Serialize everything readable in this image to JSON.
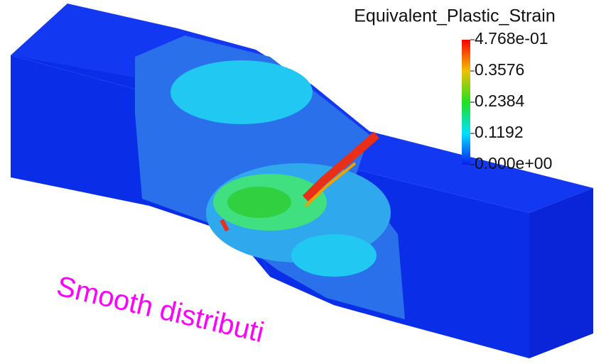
{
  "colorbar": {
    "title": "Equivalent_Plastic_Strain",
    "range": [
      0,
      0.4768
    ],
    "ticks": [
      {
        "value": 0.4768,
        "label": "4.768e-01"
      },
      0.3576,
      0.2384,
      0.1192,
      {
        "value": 0,
        "label": "0.000e+00"
      }
    ]
  },
  "annotation": "Smooth distributi"
}
